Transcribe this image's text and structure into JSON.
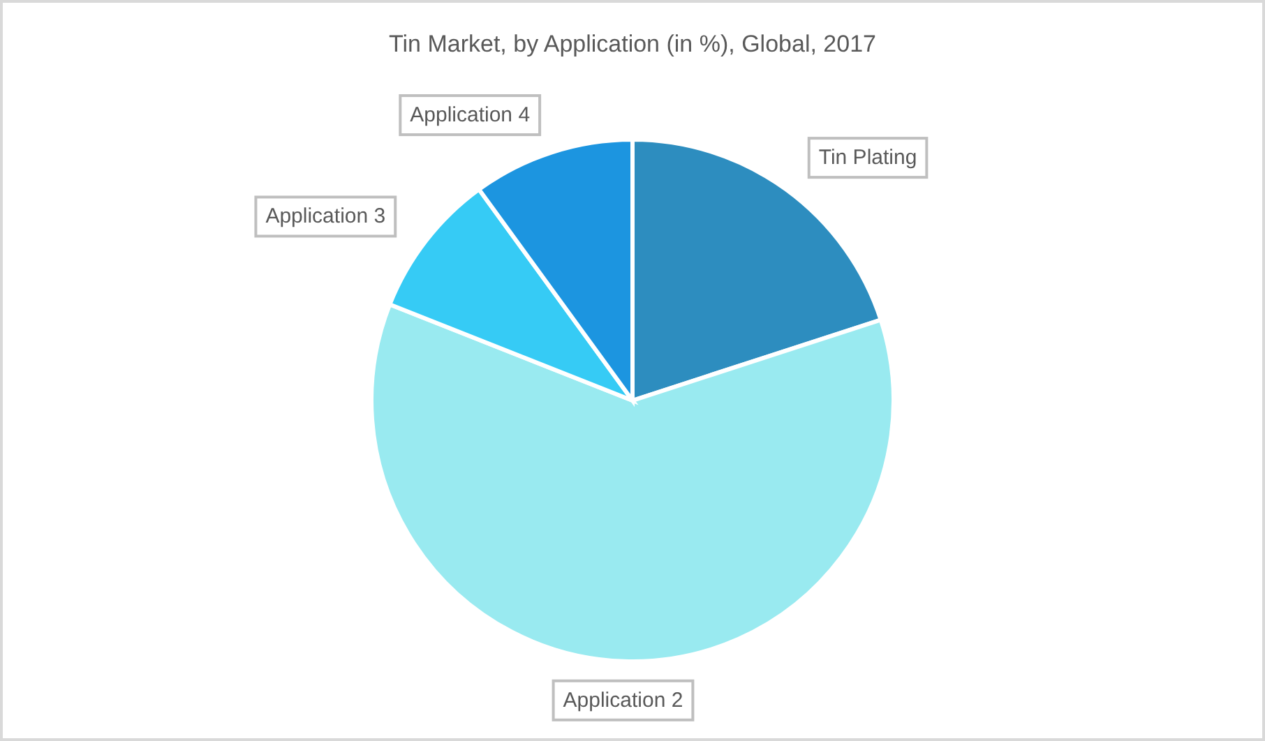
{
  "chart_data": {
    "type": "pie",
    "title": "Tin Market, by Application (in %), Global, 2017",
    "categories": [
      "Tin Plating",
      "Application 2",
      "Application 3",
      "Application 4"
    ],
    "values": [
      20,
      61,
      9,
      10
    ],
    "colors": [
      "#2d8dbf",
      "#99eaf0",
      "#36cbf5",
      "#1c95e0"
    ]
  }
}
